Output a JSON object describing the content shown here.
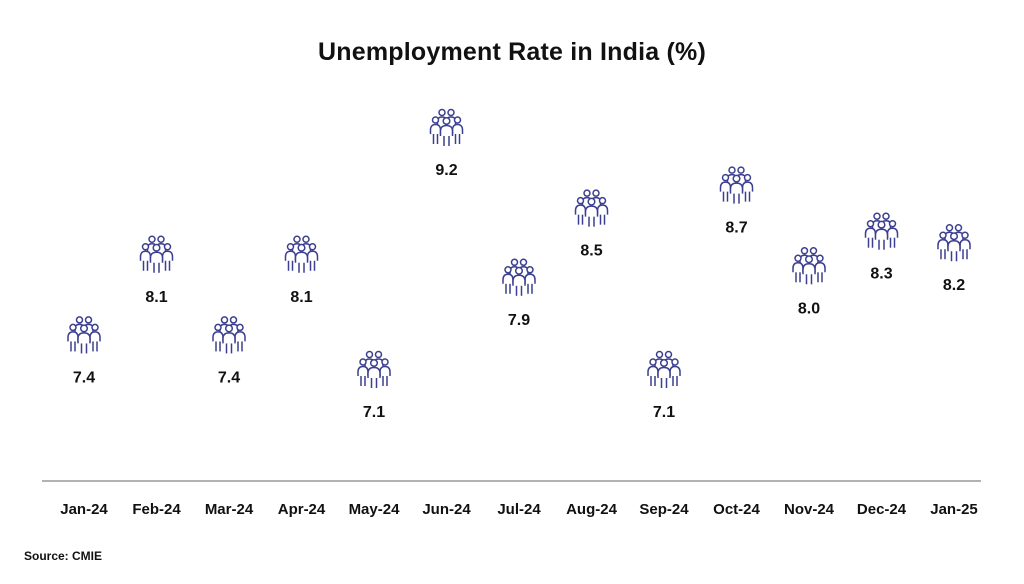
{
  "chart_data": {
    "type": "scatter",
    "title": "Unemployment Rate in India (%)",
    "categories": [
      "Jan-24",
      "Feb-24",
      "Mar-24",
      "Apr-24",
      "May-24",
      "Jun-24",
      "Jul-24",
      "Aug-24",
      "Sep-24",
      "Oct-24",
      "Nov-24",
      "Dec-24",
      "Jan-25"
    ],
    "values": [
      7.4,
      8.1,
      7.4,
      8.1,
      7.1,
      9.2,
      7.9,
      8.5,
      7.1,
      8.7,
      8.0,
      8.3,
      8.2
    ],
    "value_labels": [
      "7.4",
      "8.1",
      "7.4",
      "8.1",
      "7.1",
      "9.2",
      "7.9",
      "8.5",
      "7.1",
      "8.7",
      "8.0",
      "8.3",
      "8.2"
    ],
    "marker_icon": "people-group-icon",
    "marker_color": "#3c3f8f",
    "axis_color": "#999999",
    "xlabel": "",
    "ylabel": "",
    "grid": false
  },
  "source": "Source:  CMIE"
}
